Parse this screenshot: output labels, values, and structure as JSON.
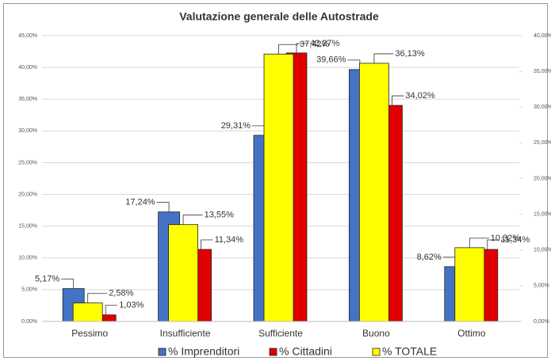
{
  "chart_data": {
    "type": "bar",
    "title": "Valutazione generale delle Autostrade",
    "categories": [
      "Pessimo",
      "Insufficiente",
      "Sufficiente",
      "Buono",
      "Ottimo"
    ],
    "series": [
      {
        "name": "% Imprenditori",
        "color": "#4472c4",
        "values": [
          5.17,
          17.24,
          29.31,
          39.66,
          8.62
        ],
        "value_labels": [
          "5,17%",
          "17,24%",
          "29,31%",
          "39,66%",
          "8,62%"
        ]
      },
      {
        "name": "% Cittadini",
        "color": "#e00000",
        "values": [
          1.03,
          11.34,
          42.27,
          34.02,
          11.34
        ],
        "value_labels": [
          "1,03%",
          "11,34%",
          "42,27%",
          "34,02%",
          "11,34%"
        ]
      },
      {
        "name": "% TOTALE",
        "color": "#ffff00",
        "axis": "y2",
        "values": [
          2.58,
          13.55,
          37.42,
          36.13,
          10.32
        ],
        "value_labels": [
          "2,58%",
          "13,55%",
          "37,42%",
          "36,13%",
          "10,32%"
        ]
      }
    ],
    "ylim": [
      0,
      45
    ],
    "yticks": [
      {
        "value": 0,
        "label": "0,00%"
      },
      {
        "value": 5,
        "label": "5,00%"
      },
      {
        "value": 10,
        "label": "10,00%"
      },
      {
        "value": 15,
        "label": "15,00%"
      },
      {
        "value": 20,
        "label": "20,00%"
      },
      {
        "value": 25,
        "label": "25,00%"
      },
      {
        "value": 30,
        "label": "30,00%"
      },
      {
        "value": 35,
        "label": "35,00%"
      },
      {
        "value": 40,
        "label": "40,00%"
      },
      {
        "value": 45,
        "label": "45,00%"
      }
    ],
    "y2lim": [
      0,
      40
    ],
    "y2ticks": [
      {
        "value": 0,
        "label": "0,00%"
      },
      {
        "value": 5,
        "label": "5,00%"
      },
      {
        "value": 10,
        "label": "10,00%"
      },
      {
        "value": 15,
        "label": "15,00%"
      },
      {
        "value": 20,
        "label": "20,00%"
      },
      {
        "value": 25,
        "label": "25,00%"
      },
      {
        "value": 30,
        "label": "30,00%"
      },
      {
        "value": 35,
        "label": "35,00%"
      },
      {
        "value": 40,
        "label": "40,00%"
      }
    ],
    "grid": true,
    "legend": "bottom"
  }
}
